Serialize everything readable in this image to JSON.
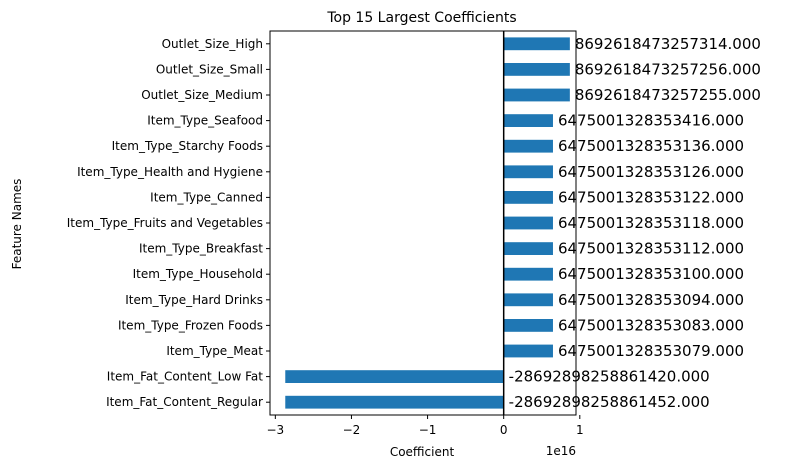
{
  "chart_data": {
    "type": "bar",
    "orientation": "horizontal",
    "title": "Top 15 Largest Coefficients",
    "xlabel": "Coefficient",
    "ylabel": "Feature Names",
    "x_offset_label": "1e16",
    "xlim": [
      -3.07,
      0.95
    ],
    "xticks": [
      -3,
      -2,
      -1,
      0,
      1
    ],
    "xtick_labels": [
      "−3",
      "−2",
      "−1",
      "0",
      "1"
    ],
    "grid": false,
    "legend": "none",
    "bar_color": "#1f77b4",
    "categories": [
      "Outlet_Size_High",
      "Outlet_Size_Small",
      "Outlet_Size_Medium",
      "Item_Type_Seafood",
      "Item_Type_Starchy Foods",
      "Item_Type_Health and Hygiene",
      "Item_Type_Canned",
      "Item_Type_Fruits and Vegetables",
      "Item_Type_Breakfast",
      "Item_Type_Household",
      "Item_Type_Hard Drinks",
      "Item_Type_Frozen Foods",
      "Item_Type_Meat",
      "Item_Fat_Content_Low Fat",
      "Item_Fat_Content_Regular"
    ],
    "values": [
      8692618473257314,
      8692618473257256,
      8692618473257255,
      6475001328353416,
      6475001328353136,
      6475001328353126,
      6475001328353122,
      6475001328353118,
      6475001328353112,
      6475001328353100,
      6475001328353094,
      6475001328353083,
      6475001328353079,
      -28692898258861420,
      -28692898258861452
    ],
    "data_labels": [
      "8692618473257314.000",
      "8692618473257256.000",
      "8692618473257255.000",
      "6475001328353416.000",
      "6475001328353136.000",
      "6475001328353126.000",
      "6475001328353122.000",
      "6475001328353118.000",
      "6475001328353112.000",
      "6475001328353100.000",
      "6475001328353094.000",
      "6475001328353083.000",
      "6475001328353079.000",
      "-28692898258861420.000",
      "-28692898258861452.000"
    ]
  }
}
